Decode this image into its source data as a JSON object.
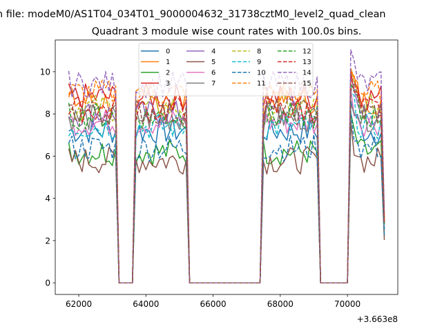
{
  "chart_data": {
    "type": "line",
    "suptitle": "n file: modeM0/AS1T04_034T01_9000004632_31738cztM0_level2_quad_clean",
    "title": "Quadrant 3 module wise count rates with 100.0s bins.",
    "xlabel": "",
    "ylabel": "",
    "x_offset_text": "+3.663e8",
    "xlim": [
      61300,
      71500
    ],
    "ylim": [
      -0.55,
      11.5
    ],
    "xticks": [
      62000,
      64000,
      66000,
      68000,
      70000
    ],
    "xtick_labels": [
      "62000",
      "64000",
      "66000",
      "68000",
      "70000"
    ],
    "yticks": [
      0,
      2,
      4,
      6,
      8,
      10
    ],
    "ytick_labels": [
      "0",
      "2",
      "4",
      "6",
      "8",
      "10"
    ],
    "grid": false,
    "legend_placement": "upper center",
    "legend_columns": 4,
    "series": [
      {
        "name": "0",
        "color": "#1f77b4",
        "style": "solid",
        "base": 7.2
      },
      {
        "name": "1",
        "color": "#ff7f0e",
        "style": "solid",
        "base": 8.6
      },
      {
        "name": "2",
        "color": "#2ca02c",
        "style": "solid",
        "base": 6.2
      },
      {
        "name": "3",
        "color": "#d62728",
        "style": "solid",
        "base": 8.8
      },
      {
        "name": "4",
        "color": "#9467bd",
        "style": "solid",
        "base": 8.0
      },
      {
        "name": "5",
        "color": "#8c564b",
        "style": "solid",
        "base": 5.8
      },
      {
        "name": "6",
        "color": "#e377c2",
        "style": "solid",
        "base": 7.6
      },
      {
        "name": "7",
        "color": "#7f7f7f",
        "style": "solid",
        "base": 7.8
      },
      {
        "name": "8",
        "color": "#bcbd22",
        "style": "dashed",
        "base": 8.3
      },
      {
        "name": "9",
        "color": "#17becf",
        "style": "dashed",
        "base": 7.4
      },
      {
        "name": "10",
        "color": "#1f77b4",
        "style": "dashed",
        "base": 6.4
      },
      {
        "name": "11",
        "color": "#ff7f0e",
        "style": "dashed",
        "base": 9.0
      },
      {
        "name": "12",
        "color": "#2ca02c",
        "style": "dashed",
        "base": 7.9
      },
      {
        "name": "13",
        "color": "#d62728",
        "style": "dashed",
        "base": 8.2
      },
      {
        "name": "14",
        "color": "#9467bd",
        "style": "dashed",
        "base": 9.4
      },
      {
        "name": "15",
        "color": "#8c564b",
        "style": "dashed",
        "base": 8.1
      }
    ],
    "segments": [
      {
        "start": 61700,
        "end": 63100
      },
      {
        "start": 63700,
        "end": 65200
      },
      {
        "start": 67500,
        "end": 69100
      },
      {
        "start": 70100,
        "end": 71100
      }
    ],
    "zero_gaps": [
      {
        "start": 63200,
        "end": 63600
      },
      {
        "start": 65300,
        "end": 67400
      },
      {
        "start": 69300,
        "end": 69900
      }
    ],
    "bin_width": 100
  }
}
